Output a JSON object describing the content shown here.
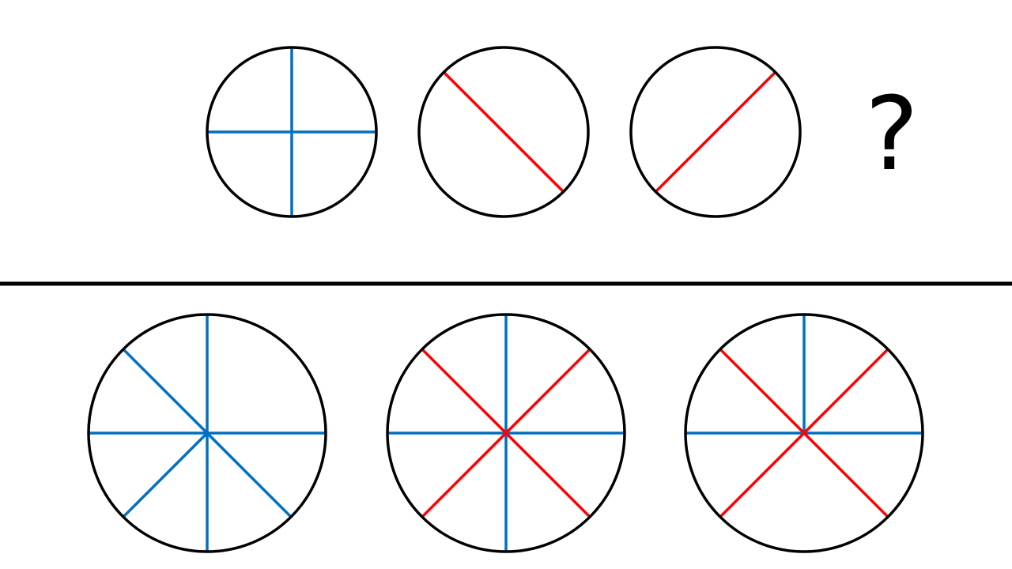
{
  "question_mark": "?",
  "colors": {
    "outline": "#000000",
    "blue": "#0070C0",
    "red": "#FF0000"
  },
  "sequence": [
    {
      "lines": [
        {
          "angle": 90,
          "color": "blue"
        },
        {
          "angle": 0,
          "color": "blue"
        }
      ]
    },
    {
      "lines": [
        {
          "angle": 135,
          "color": "red"
        }
      ]
    },
    {
      "lines": [
        {
          "angle": 45,
          "color": "red"
        }
      ]
    }
  ],
  "options": [
    {
      "lines": [
        {
          "angle": 90,
          "color": "blue"
        },
        {
          "angle": 0,
          "color": "blue"
        },
        {
          "angle": 135,
          "color": "blue"
        },
        {
          "angle": 45,
          "color": "blue",
          "half": "lower"
        }
      ]
    },
    {
      "lines": [
        {
          "angle": 90,
          "color": "blue"
        },
        {
          "angle": 0,
          "color": "blue"
        },
        {
          "angle": 135,
          "color": "red"
        },
        {
          "angle": 45,
          "color": "red"
        }
      ]
    },
    {
      "lines": [
        {
          "angle": 90,
          "color": "blue",
          "half": "upper"
        },
        {
          "angle": 0,
          "color": "blue"
        },
        {
          "angle": 135,
          "color": "red"
        },
        {
          "angle": 45,
          "color": "red"
        }
      ]
    }
  ]
}
